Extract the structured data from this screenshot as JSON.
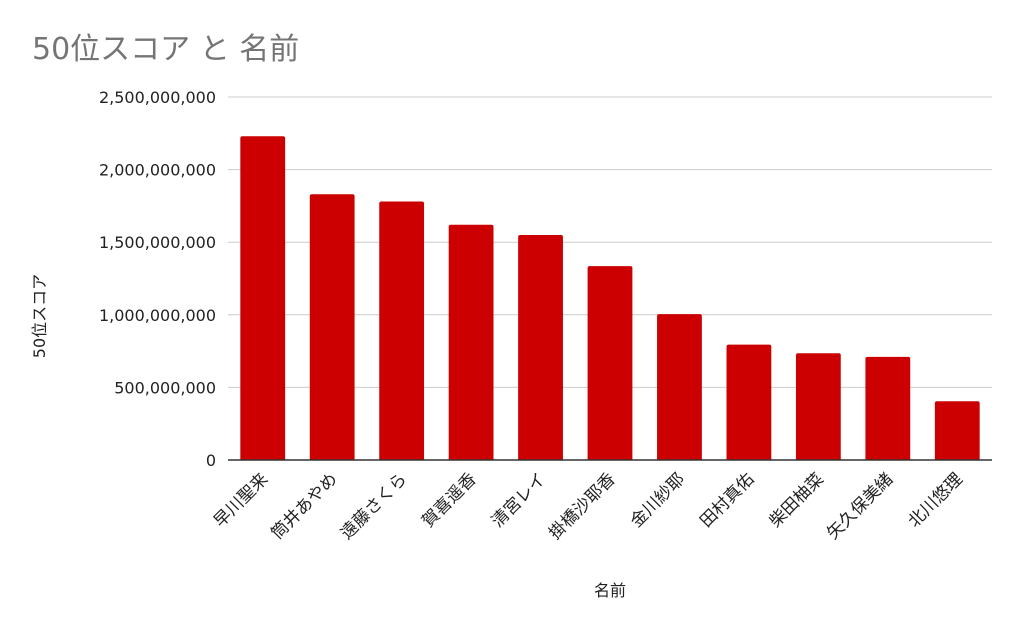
{
  "chart_data": {
    "type": "bar",
    "title": "50位スコア と 名前",
    "xlabel": "名前",
    "ylabel": "50位スコア",
    "categories": [
      "早川聖来",
      "筒井あやめ",
      "遠藤さくら",
      "賀喜遥香",
      "清宮レイ",
      "掛橋沙耶香",
      "金川紗耶",
      "田村真佑",
      "柴田柚菜",
      "矢久保美緒",
      "北川悠理"
    ],
    "series": [
      {
        "values": [
          2230000000,
          1830000000,
          1780000000,
          1620000000,
          1550000000,
          1335000000,
          1005000000,
          795000000,
          735000000,
          710000000,
          405000000
        ]
      }
    ],
    "ylim": [
      0,
      2500000000
    ],
    "yticks": [
      "0",
      "500,000,000",
      "1,000,000,000",
      "1,500,000,000",
      "2,000,000,000",
      "2,500,000,000"
    ],
    "ytick_values": [
      0,
      500000000,
      1000000000,
      1500000000,
      2000000000,
      2500000000
    ],
    "grid": true,
    "bar_color": "#cc0000"
  }
}
